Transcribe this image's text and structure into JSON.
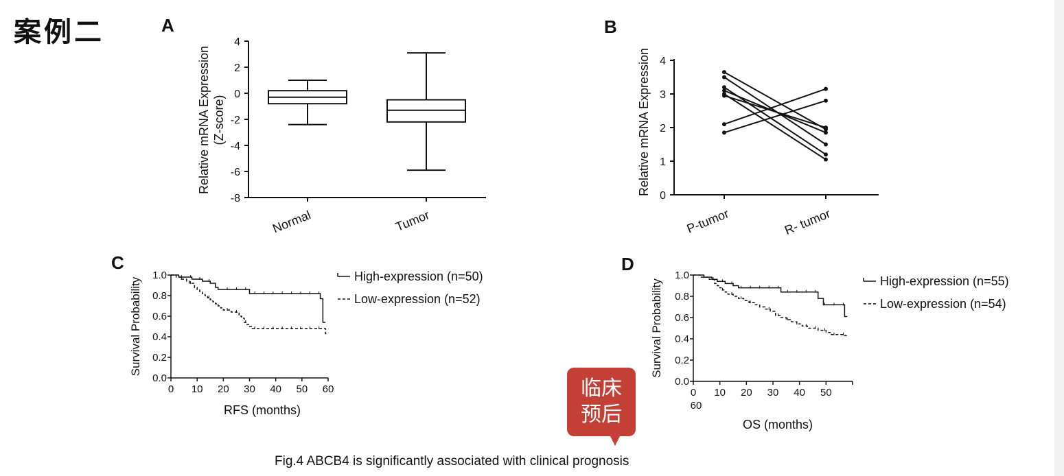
{
  "slide_title": "案例二",
  "badge": {
    "line1": "临床",
    "line2": "预后"
  },
  "caption": "Fig.4 ABCB4 is significantly associated with clinical prognosis",
  "chart_data": [
    {
      "panel": "A",
      "type": "box",
      "ylabel": [
        "Relative mRNA Expression",
        "(Z-score)"
      ],
      "ylim": [
        -8,
        4
      ],
      "yticks": [
        4,
        2,
        0,
        -2,
        -4,
        -6,
        -8
      ],
      "categories": [
        "Normal",
        "Tumor"
      ],
      "boxes": [
        {
          "category": "Normal",
          "min": -2.4,
          "q1": -0.8,
          "median": -0.3,
          "q3": 0.2,
          "max": 1.0
        },
        {
          "category": "Tumor",
          "min": -5.9,
          "q1": -2.2,
          "median": -1.3,
          "q3": -0.5,
          "max": 3.1
        }
      ]
    },
    {
      "panel": "B",
      "type": "line",
      "ylabel": "Relative mRNA Expression",
      "ylim": [
        0,
        4
      ],
      "yticks": [
        4,
        3,
        2,
        1,
        0
      ],
      "categories": [
        "P-tumor",
        "R- tumor"
      ],
      "pairs": [
        [
          3.65,
          1.95
        ],
        [
          3.5,
          1.5
        ],
        [
          3.2,
          1.2
        ],
        [
          3.1,
          1.85
        ],
        [
          3.0,
          1.05
        ],
        [
          2.95,
          2.0
        ],
        [
          2.1,
          3.15
        ],
        [
          1.85,
          2.8
        ]
      ]
    },
    {
      "panel": "C",
      "type": "line",
      "ylabel": "Survival Probability",
      "xlabel": "RFS (months)",
      "xlim": [
        0,
        60
      ],
      "ylim": [
        0,
        1
      ],
      "xticks": [
        0,
        10,
        20,
        30,
        40,
        50,
        60
      ],
      "yticks": [
        "1.0",
        "0.8",
        "0.6",
        "0.4",
        "0.2",
        "0.0"
      ],
      "legend": "right",
      "series": [
        {
          "name": "High-expression (n=50)",
          "style": "solid",
          "steps": [
            [
              0,
              1.0
            ],
            [
              3,
              0.98
            ],
            [
              8,
              0.96
            ],
            [
              12,
              0.94
            ],
            [
              15,
              0.92
            ],
            [
              17,
              0.88
            ],
            [
              18,
              0.86
            ],
            [
              30,
              0.82
            ],
            [
              57,
              0.77
            ],
            [
              58,
              0.54
            ]
          ]
        },
        {
          "name": "Low-expression (n=52)",
          "style": "dashed",
          "steps": [
            [
              0,
              1.0
            ],
            [
              2,
              0.98
            ],
            [
              4,
              0.96
            ],
            [
              6,
              0.94
            ],
            [
              7,
              0.92
            ],
            [
              9,
              0.88
            ],
            [
              10,
              0.86
            ],
            [
              11,
              0.84
            ],
            [
              12,
              0.82
            ],
            [
              13,
              0.8
            ],
            [
              14,
              0.78
            ],
            [
              15,
              0.76
            ],
            [
              16,
              0.74
            ],
            [
              17,
              0.72
            ],
            [
              18,
              0.7
            ],
            [
              19,
              0.68
            ],
            [
              20,
              0.66
            ],
            [
              23,
              0.64
            ],
            [
              26,
              0.6
            ],
            [
              27,
              0.58
            ],
            [
              28,
              0.54
            ],
            [
              29,
              0.52
            ],
            [
              30,
              0.5
            ],
            [
              31,
              0.48
            ],
            [
              59,
              0.43
            ]
          ]
        }
      ]
    },
    {
      "panel": "D",
      "type": "line",
      "ylabel": "Survival Probability",
      "xlabel": "OS (months)",
      "xlim": [
        0,
        60
      ],
      "ylim": [
        0,
        1
      ],
      "xtick_labels": [
        "0",
        "10",
        "20",
        "30",
        "40",
        "50",
        "60"
      ],
      "yticks": [
        "1.0",
        "0.8",
        "0.6",
        "0.4",
        "0.2",
        "0.0"
      ],
      "legend": "right",
      "series": [
        {
          "name": "High-expression (n=55)",
          "style": "solid",
          "steps": [
            [
              0,
              1.0
            ],
            [
              4,
              0.98
            ],
            [
              7,
              0.96
            ],
            [
              9,
              0.94
            ],
            [
              12,
              0.92
            ],
            [
              15,
              0.9
            ],
            [
              17,
              0.88
            ],
            [
              33,
              0.84
            ],
            [
              47,
              0.78
            ],
            [
              49,
              0.72
            ],
            [
              57,
              0.61
            ]
          ]
        },
        {
          "name": "Low-expression (n=54)",
          "style": "dashed",
          "steps": [
            [
              0,
              1.0
            ],
            [
              3,
              0.98
            ],
            [
              6,
              0.96
            ],
            [
              8,
              0.92
            ],
            [
              9,
              0.9
            ],
            [
              10,
              0.88
            ],
            [
              11,
              0.86
            ],
            [
              12,
              0.84
            ],
            [
              13,
              0.82
            ],
            [
              15,
              0.8
            ],
            [
              17,
              0.78
            ],
            [
              19,
              0.76
            ],
            [
              21,
              0.74
            ],
            [
              23,
              0.72
            ],
            [
              25,
              0.7
            ],
            [
              27,
              0.68
            ],
            [
              29,
              0.66
            ],
            [
              31,
              0.62
            ],
            [
              33,
              0.6
            ],
            [
              35,
              0.58
            ],
            [
              37,
              0.56
            ],
            [
              39,
              0.54
            ],
            [
              41,
              0.52
            ],
            [
              43,
              0.5
            ],
            [
              47,
              0.48
            ],
            [
              50,
              0.46
            ],
            [
              52,
              0.44
            ],
            [
              57,
              0.43
            ]
          ]
        }
      ]
    }
  ]
}
